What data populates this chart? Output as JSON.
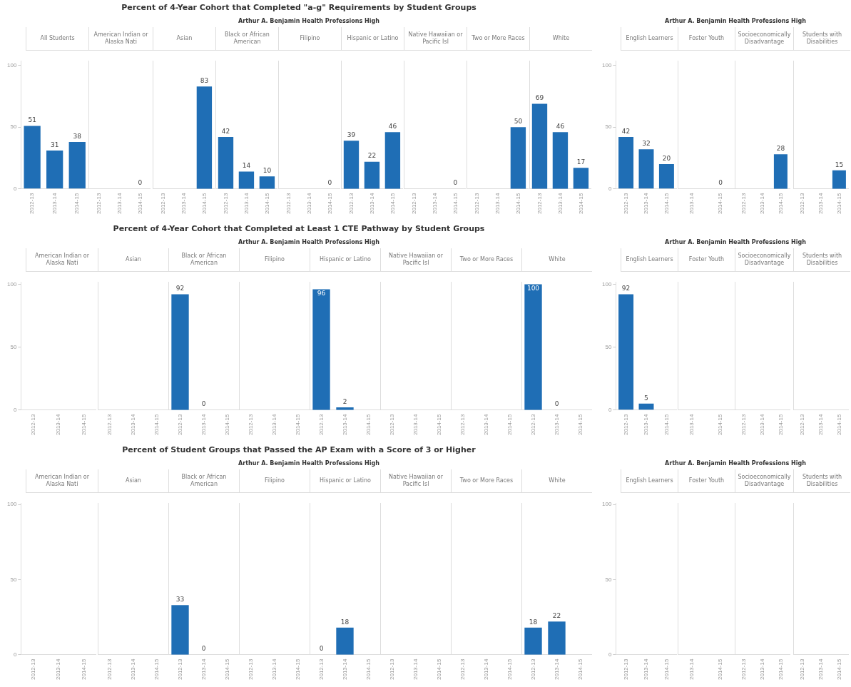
{
  "chart_data": [
    {
      "type": "bar",
      "title": "All Students",
      "annotations": [
        "Percent of 4-Year Cohort that Completed \"a-g\" Requirements by Student Groups",
        "Arthur A. Benjamin Health Professions High"
      ],
      "categories": [
        "2012-13",
        "2013-14",
        "2014-15"
      ],
      "values": [
        51,
        31,
        38
      ],
      "color": "#1f6eb5",
      "ylim": [
        0,
        104
      ],
      "yticks": [
        0,
        50,
        100
      ],
      "data_labels": true
    },
    {
      "type": "bar",
      "title": "American Indian or Alaska Nati",
      "categories": [
        "2012-13",
        "2013-14",
        "2014-15"
      ],
      "values": [
        null,
        null,
        0
      ],
      "color": "#1f6eb5",
      "ylim": [
        0,
        104
      ],
      "yticks": [
        0,
        50,
        100
      ],
      "data_labels": true,
      "tick_labels": "x"
    },
    {
      "type": "bar",
      "title": "Asian",
      "categories": [
        "2012-13",
        "2013-14",
        "2014-15"
      ],
      "values": [
        null,
        null,
        83
      ],
      "color": "#1f6eb5",
      "ylim": [
        0,
        104
      ],
      "yticks": [
        0,
        50,
        100
      ],
      "data_labels": true,
      "tick_labels": "x"
    },
    {
      "type": "bar",
      "title": "Black or African American",
      "categories": [
        "2012-13",
        "2013-14",
        "2014-15"
      ],
      "values": [
        42,
        14,
        10
      ],
      "color": "#1f6eb5",
      "ylim": [
        0,
        104
      ],
      "yticks": [
        0,
        50,
        100
      ],
      "data_labels": true,
      "tick_labels": "x"
    },
    {
      "type": "bar",
      "title": "Filipino",
      "categories": [
        "2012-13",
        "2013-14",
        "2014-15"
      ],
      "values": [
        null,
        null,
        0
      ],
      "color": "#1f6eb5",
      "ylim": [
        0,
        104
      ],
      "yticks": [
        0,
        50,
        100
      ],
      "data_labels": true,
      "tick_labels": "x"
    },
    {
      "type": "bar",
      "title": "Hispanic or Latino",
      "categories": [
        "2012-13",
        "2013-14",
        "2014-15"
      ],
      "values": [
        39,
        22,
        46
      ],
      "color": "#1f6eb5",
      "ylim": [
        0,
        104
      ],
      "yticks": [
        0,
        50,
        100
      ],
      "data_labels": true,
      "tick_labels": "x"
    },
    {
      "type": "bar",
      "title": "Native Hawaiian or Pacific Isl",
      "categories": [
        "2012-13",
        "2013-14",
        "2014-15"
      ],
      "values": [
        null,
        null,
        0
      ],
      "color": "#1f6eb5",
      "ylim": [
        0,
        104
      ],
      "yticks": [
        0,
        50,
        100
      ],
      "data_labels": true,
      "tick_labels": "x"
    },
    {
      "type": "bar",
      "title": "Two or More Races",
      "categories": [
        "2012-13",
        "2013-14",
        "2014-15"
      ],
      "values": [
        null,
        null,
        50
      ],
      "color": "#1f6eb5",
      "ylim": [
        0,
        104
      ],
      "yticks": [
        0,
        50,
        100
      ],
      "data_labels": true,
      "tick_labels": "x"
    },
    {
      "type": "bar",
      "title": "White",
      "categories": [
        "2012-13",
        "2013-14",
        "2014-15"
      ],
      "values": [
        69,
        46,
        17
      ],
      "color": "#1f6eb5",
      "ylim": [
        0,
        104
      ],
      "yticks": [
        0,
        50,
        100
      ],
      "data_labels": true,
      "tick_labels": "x"
    },
    {
      "type": "bar",
      "title": "English Learners",
      "annotations": [
        "Arthur A. Benjamin Health Professions High"
      ],
      "categories": [
        "2012-13",
        "2013-14",
        "2014-15"
      ],
      "values": [
        42,
        32,
        20
      ],
      "color": "#1f6eb5",
      "ylim": [
        0,
        104
      ],
      "yticks": [
        0,
        50,
        100
      ],
      "data_labels": true
    },
    {
      "type": "bar",
      "title": "Foster Youth",
      "categories": [
        "2013-14",
        "2014-15"
      ],
      "values": [
        null,
        0
      ],
      "color": "#1f6eb5",
      "ylim": [
        0,
        104
      ],
      "yticks": [
        0,
        50,
        100
      ],
      "data_labels": true,
      "tick_labels": "x"
    },
    {
      "type": "bar",
      "title": "Socioeconomically Disadvantage",
      "categories": [
        "2012-13",
        "2013-14",
        "2014-15"
      ],
      "values": [
        null,
        null,
        28
      ],
      "color": "#1f6eb5",
      "ylim": [
        0,
        104
      ],
      "yticks": [
        0,
        50,
        100
      ],
      "data_labels": true,
      "tick_labels": "x"
    },
    {
      "type": "bar",
      "title": "Students with Disabilities",
      "categories": [
        "2012-13",
        "2013-14",
        "2014-15"
      ],
      "values": [
        null,
        null,
        15
      ],
      "color": "#1f6eb5",
      "ylim": [
        0,
        104
      ],
      "yticks": [
        0,
        50,
        100
      ],
      "data_labels": true,
      "tick_labels": "x"
    },
    {
      "type": "bar",
      "title": "American Indian or Alaska Nati",
      "annotations": [
        "Percent of 4-Year Cohort that Completed at Least 1 CTE Pathway by Student Groups",
        "Arthur A. Benjamin Health Professions High"
      ],
      "categories": [
        "2012-13",
        "2013-14",
        "2014-15"
      ],
      "values": [
        null,
        null,
        null
      ],
      "color": "#1f6eb5",
      "ylim": [
        0,
        102
      ],
      "yticks": [
        0,
        50,
        100
      ],
      "data_labels": true
    },
    {
      "type": "bar",
      "title": "Asian",
      "categories": [
        "2012-13",
        "2013-14",
        "2014-15"
      ],
      "values": [
        null,
        null,
        null
      ],
      "color": "#1f6eb5",
      "ylim": [
        0,
        102
      ],
      "yticks": [
        0,
        50,
        100
      ],
      "data_labels": true,
      "tick_labels": "x"
    },
    {
      "type": "bar",
      "title": "Black or African American",
      "categories": [
        "2012-13",
        "2013-14",
        "2014-15"
      ],
      "values": [
        92,
        0,
        null
      ],
      "color": "#1f6eb5",
      "ylim": [
        0,
        102
      ],
      "yticks": [
        0,
        50,
        100
      ],
      "data_labels": true,
      "tick_labels": "x"
    },
    {
      "type": "bar",
      "title": "Filipino",
      "categories": [
        "2012-13",
        "2013-14",
        "2014-15"
      ],
      "values": [
        null,
        null,
        null
      ],
      "color": "#1f6eb5",
      "ylim": [
        0,
        102
      ],
      "yticks": [
        0,
        50,
        100
      ],
      "data_labels": true,
      "tick_labels": "x"
    },
    {
      "type": "bar",
      "title": "Hispanic or Latino",
      "categories": [
        "2012-13",
        "2013-14",
        "2014-15"
      ],
      "values": [
        96,
        2,
        null
      ],
      "color": "#1f6eb5",
      "ylim": [
        0,
        102
      ],
      "yticks": [
        0,
        50,
        100
      ],
      "data_labels": true,
      "tick_labels": "x"
    },
    {
      "type": "bar",
      "title": "Native Hawaiian or Pacific Isl",
      "categories": [
        "2012-13",
        "2013-14",
        "2014-15"
      ],
      "values": [
        null,
        null,
        null
      ],
      "color": "#1f6eb5",
      "ylim": [
        0,
        102
      ],
      "yticks": [
        0,
        50,
        100
      ],
      "data_labels": true,
      "tick_labels": "x"
    },
    {
      "type": "bar",
      "title": "Two or More Races",
      "categories": [
        "2012-13",
        "2013-14",
        "2014-15"
      ],
      "values": [
        null,
        null,
        null
      ],
      "color": "#1f6eb5",
      "ylim": [
        0,
        102
      ],
      "yticks": [
        0,
        50,
        100
      ],
      "data_labels": true,
      "tick_labels": "x"
    },
    {
      "type": "bar",
      "title": "White",
      "categories": [
        "2012-13",
        "2013-14",
        "2014-15"
      ],
      "values": [
        100,
        0,
        null
      ],
      "color": "#1f6eb5",
      "ylim": [
        0,
        102
      ],
      "yticks": [
        0,
        50,
        100
      ],
      "data_labels": true,
      "tick_labels": "x"
    },
    {
      "type": "bar",
      "title": "English Learners",
      "annotations": [
        "Arthur A. Benjamin Health Professions High"
      ],
      "categories": [
        "2012-13",
        "2013-14",
        "2014-15"
      ],
      "values": [
        92,
        5,
        null
      ],
      "color": "#1f6eb5",
      "ylim": [
        0,
        102
      ],
      "yticks": [
        0,
        50,
        100
      ],
      "data_labels": true
    },
    {
      "type": "bar",
      "title": "Foster Youth",
      "categories": [
        "2013-14",
        "2014-15"
      ],
      "values": [
        null,
        null
      ],
      "color": "#1f6eb5",
      "ylim": [
        0,
        102
      ],
      "yticks": [
        0,
        50,
        100
      ],
      "data_labels": true,
      "tick_labels": "x"
    },
    {
      "type": "bar",
      "title": "Socioeconomically Disadvantage",
      "categories": [
        "2012-13",
        "2013-14",
        "2014-15"
      ],
      "values": [
        null,
        null,
        null
      ],
      "color": "#1f6eb5",
      "ylim": [
        0,
        102
      ],
      "yticks": [
        0,
        50,
        100
      ],
      "data_labels": true,
      "tick_labels": "x"
    },
    {
      "type": "bar",
      "title": "Students with Disabilities",
      "categories": [
        "2012-13",
        "2013-14",
        "2014-15"
      ],
      "values": [
        null,
        null,
        null
      ],
      "color": "#1f6eb5",
      "ylim": [
        0,
        102
      ],
      "yticks": [
        0,
        50,
        100
      ],
      "data_labels": true,
      "tick_labels": "x"
    },
    {
      "type": "bar",
      "title": "American Indian or Alaska Nati",
      "annotations": [
        "Percent of Student Groups that Passed the AP Exam with a Score of 3 or Higher",
        "Arthur A. Benjamin Health Professions High"
      ],
      "categories": [
        "2012-13",
        "2013-14",
        "2014-15"
      ],
      "values": [
        null,
        null,
        null
      ],
      "color": "#1f6eb5",
      "ylim": [
        0,
        101
      ],
      "yticks": [
        0,
        50,
        100
      ],
      "data_labels": true
    },
    {
      "type": "bar",
      "title": "Asian",
      "categories": [
        "2012-13",
        "2013-14",
        "2014-15"
      ],
      "values": [
        null,
        null,
        null
      ],
      "color": "#1f6eb5",
      "ylim": [
        0,
        101
      ],
      "yticks": [
        0,
        50,
        100
      ],
      "data_labels": true,
      "tick_labels": "x"
    },
    {
      "type": "bar",
      "title": "Black or African American",
      "categories": [
        "2012-13",
        "2013-14",
        "2014-15"
      ],
      "values": [
        33,
        0,
        null
      ],
      "color": "#1f6eb5",
      "ylim": [
        0,
        101
      ],
      "yticks": [
        0,
        50,
        100
      ],
      "data_labels": true,
      "tick_labels": "x"
    },
    {
      "type": "bar",
      "title": "Filipino",
      "categories": [
        "2012-13",
        "2013-14",
        "2014-15"
      ],
      "values": [
        null,
        null,
        null
      ],
      "color": "#1f6eb5",
      "ylim": [
        0,
        101
      ],
      "yticks": [
        0,
        50,
        100
      ],
      "data_labels": true,
      "tick_labels": "x"
    },
    {
      "type": "bar",
      "title": "Hispanic or Latino",
      "categories": [
        "2012-13",
        "2013-14",
        "2014-15"
      ],
      "values": [
        0,
        18,
        null
      ],
      "color": "#1f6eb5",
      "ylim": [
        0,
        101
      ],
      "yticks": [
        0,
        50,
        100
      ],
      "data_labels": true,
      "tick_labels": "x"
    },
    {
      "type": "bar",
      "title": "Native Hawaiian or Pacific Isl",
      "categories": [
        "2012-13",
        "2013-14",
        "2014-15"
      ],
      "values": [
        null,
        null,
        null
      ],
      "color": "#1f6eb5",
      "ylim": [
        0,
        101
      ],
      "yticks": [
        0,
        50,
        100
      ],
      "data_labels": true,
      "tick_labels": "x"
    },
    {
      "type": "bar",
      "title": "Two or More Races",
      "categories": [
        "2012-13",
        "2013-14",
        "2014-15"
      ],
      "values": [
        null,
        null,
        null
      ],
      "color": "#1f6eb5",
      "ylim": [
        0,
        101
      ],
      "yticks": [
        0,
        50,
        100
      ],
      "data_labels": true,
      "tick_labels": "x"
    },
    {
      "type": "bar",
      "title": "White",
      "categories": [
        "2012-13",
        "2013-14",
        "2014-15"
      ],
      "values": [
        18,
        22,
        null
      ],
      "color": "#1f6eb5",
      "ylim": [
        0,
        101
      ],
      "yticks": [
        0,
        50,
        100
      ],
      "data_labels": true,
      "tick_labels": "x"
    },
    {
      "type": "bar",
      "title": "English Learners",
      "annotations": [
        "Arthur A. Benjamin Health Professions High"
      ],
      "categories": [
        "2012-13",
        "2013-14",
        "2014-15"
      ],
      "values": [
        null,
        null,
        null
      ],
      "color": "#1f6eb5",
      "ylim": [
        0,
        101
      ],
      "yticks": [
        0,
        50,
        100
      ],
      "data_labels": true
    },
    {
      "type": "bar",
      "title": "Foster Youth",
      "categories": [
        "2013-14",
        "2014-15"
      ],
      "values": [
        null,
        null
      ],
      "color": "#1f6eb5",
      "ylim": [
        0,
        101
      ],
      "yticks": [
        0,
        50,
        100
      ],
      "data_labels": true,
      "tick_labels": "x"
    },
    {
      "type": "bar",
      "title": "Socioeconomically Disadvantage",
      "categories": [
        "2012-13",
        "2013-14",
        "2014-15"
      ],
      "values": [
        null,
        null,
        null
      ],
      "color": "#1f6eb5",
      "ylim": [
        0,
        101
      ],
      "yticks": [
        0,
        50,
        100
      ],
      "data_labels": true,
      "tick_labels": "x"
    },
    {
      "type": "bar",
      "title": "Students with Disabilities",
      "categories": [
        "2012-13",
        "2013-14",
        "2014-15"
      ],
      "values": [
        null,
        null,
        null
      ],
      "color": "#1f6eb5",
      "ylim": [
        0,
        101
      ],
      "yticks": [
        0,
        50,
        100
      ],
      "data_labels": true,
      "tick_labels": "x"
    }
  ]
}
